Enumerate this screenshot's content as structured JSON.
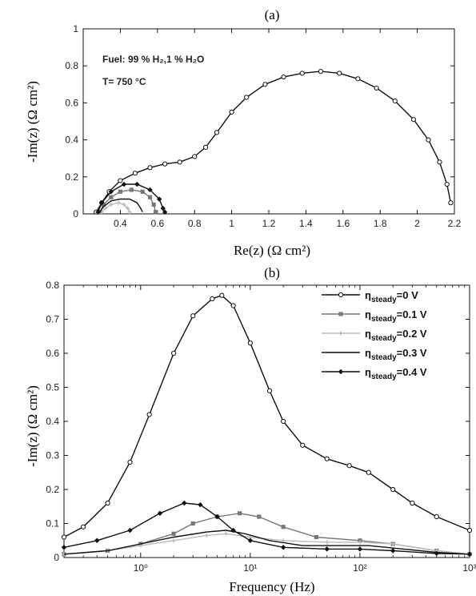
{
  "chart_data": [
    {
      "type": "line",
      "panel_label": "(a)",
      "xlabel": "Re(z) (Ω cm²)",
      "ylabel": "-Im(z) (Ω cm²)",
      "xlim": [
        0.2,
        2.2
      ],
      "ylim": [
        0,
        1
      ],
      "xticks": [
        "0.4",
        "0.6",
        "0.8",
        "1",
        "1.2",
        "1.4",
        "1.6",
        "1.8",
        "2",
        "2.2"
      ],
      "yticks": [
        "0",
        "0.2",
        "0.4",
        "0.6",
        "0.8",
        "1"
      ],
      "annotations": [
        "Fuel: 99 % H₂,1 % H₂O",
        "T= 750 °C"
      ],
      "series": [
        {
          "color": "#111111",
          "marker": "circle-open",
          "points": [
            [
              0.27,
              0.01
            ],
            [
              0.3,
              0.06
            ],
            [
              0.34,
              0.12
            ],
            [
              0.4,
              0.18
            ],
            [
              0.48,
              0.22
            ],
            [
              0.56,
              0.25
            ],
            [
              0.64,
              0.27
            ],
            [
              0.72,
              0.28
            ],
            [
              0.8,
              0.31
            ],
            [
              0.86,
              0.36
            ],
            [
              0.92,
              0.44
            ],
            [
              1.0,
              0.55
            ],
            [
              1.08,
              0.63
            ],
            [
              1.18,
              0.7
            ],
            [
              1.28,
              0.74
            ],
            [
              1.38,
              0.76
            ],
            [
              1.48,
              0.77
            ],
            [
              1.58,
              0.76
            ],
            [
              1.68,
              0.73
            ],
            [
              1.78,
              0.68
            ],
            [
              1.88,
              0.61
            ],
            [
              1.98,
              0.51
            ],
            [
              2.06,
              0.4
            ],
            [
              2.12,
              0.28
            ],
            [
              2.16,
              0.16
            ],
            [
              2.18,
              0.06
            ]
          ]
        },
        {
          "color": "#777777",
          "marker": "square",
          "points": [
            [
              0.29,
              0.01
            ],
            [
              0.31,
              0.05
            ],
            [
              0.35,
              0.09
            ],
            [
              0.4,
              0.12
            ],
            [
              0.46,
              0.13
            ],
            [
              0.52,
              0.12
            ],
            [
              0.56,
              0.09
            ],
            [
              0.58,
              0.05
            ],
            [
              0.59,
              0.01
            ]
          ]
        },
        {
          "color": "#bbbbbb",
          "marker": "cross",
          "points": [
            [
              0.3,
              0.01
            ],
            [
              0.32,
              0.03
            ],
            [
              0.35,
              0.05
            ],
            [
              0.39,
              0.06
            ],
            [
              0.42,
              0.05
            ],
            [
              0.44,
              0.03
            ],
            [
              0.45,
              0.01
            ]
          ]
        },
        {
          "color": "#111111",
          "marker": "none",
          "points": [
            [
              0.29,
              0.01
            ],
            [
              0.31,
              0.04
            ],
            [
              0.35,
              0.07
            ],
            [
              0.4,
              0.08
            ],
            [
              0.45,
              0.08
            ],
            [
              0.49,
              0.06
            ],
            [
              0.51,
              0.03
            ],
            [
              0.52,
              0.01
            ]
          ]
        },
        {
          "color": "#111111",
          "marker": "diamond",
          "points": [
            [
              0.28,
              0.01
            ],
            [
              0.3,
              0.06
            ],
            [
              0.35,
              0.12
            ],
            [
              0.42,
              0.16
            ],
            [
              0.49,
              0.16
            ],
            [
              0.56,
              0.13
            ],
            [
              0.61,
              0.08
            ],
            [
              0.63,
              0.03
            ],
            [
              0.64,
              0.01
            ]
          ]
        }
      ]
    },
    {
      "type": "line",
      "panel_label": "(b)",
      "xlabel": "Frequency (Hz)",
      "ylabel": "-Im(z) (Ω cm²)",
      "xscale": "log",
      "xlim": [
        0.2,
        1000
      ],
      "ylim": [
        0,
        0.8
      ],
      "xticks": [
        "10⁰",
        "10¹",
        "10²",
        "10³"
      ],
      "yticks": [
        "0",
        "0.1",
        "0.2",
        "0.3",
        "0.4",
        "0.5",
        "0.6",
        "0.7",
        "0.8"
      ],
      "legend_position": "top-right",
      "series": [
        {
          "name": "η_steady=0 V",
          "legend_main": "η",
          "legend_sub": "steady",
          "legend_rest": "=0 V",
          "color": "#111111",
          "marker": "circle-open",
          "points": [
            [
              0.2,
              0.06
            ],
            [
              0.3,
              0.09
            ],
            [
              0.5,
              0.16
            ],
            [
              0.8,
              0.28
            ],
            [
              1.2,
              0.42
            ],
            [
              2,
              0.6
            ],
            [
              3,
              0.71
            ],
            [
              4.5,
              0.76
            ],
            [
              5.5,
              0.77
            ],
            [
              7,
              0.74
            ],
            [
              10,
              0.63
            ],
            [
              15,
              0.49
            ],
            [
              20,
              0.4
            ],
            [
              30,
              0.33
            ],
            [
              50,
              0.29
            ],
            [
              80,
              0.27
            ],
            [
              120,
              0.25
            ],
            [
              200,
              0.2
            ],
            [
              300,
              0.16
            ],
            [
              500,
              0.12
            ],
            [
              1000,
              0.08
            ]
          ]
        },
        {
          "name": "η_steady=0.1 V",
          "legend_main": "η",
          "legend_sub": "steady",
          "legend_rest": "=0.1 V",
          "color": "#777777",
          "marker": "square",
          "points": [
            [
              0.2,
              0.01
            ],
            [
              0.5,
              0.02
            ],
            [
              1,
              0.04
            ],
            [
              2,
              0.07
            ],
            [
              3,
              0.1
            ],
            [
              5,
              0.12
            ],
            [
              8,
              0.13
            ],
            [
              12,
              0.12
            ],
            [
              20,
              0.09
            ],
            [
              40,
              0.06
            ],
            [
              100,
              0.05
            ],
            [
              200,
              0.04
            ],
            [
              500,
              0.02
            ],
            [
              1000,
              0.01
            ]
          ]
        },
        {
          "name": "η_steady=0.2 V",
          "legend_main": "η",
          "legend_sub": "steady",
          "legend_rest": "=0.2 V",
          "color": "#bbbbbb",
          "marker": "cross",
          "points": [
            [
              0.2,
              0.01
            ],
            [
              0.5,
              0.02
            ],
            [
              1,
              0.035
            ],
            [
              2,
              0.05
            ],
            [
              4,
              0.065
            ],
            [
              6,
              0.07
            ],
            [
              10,
              0.06
            ],
            [
              20,
              0.05
            ],
            [
              50,
              0.045
            ],
            [
              100,
              0.045
            ],
            [
              200,
              0.04
            ],
            [
              500,
              0.02
            ],
            [
              1000,
              0.01
            ]
          ]
        },
        {
          "name": "η_steady=0.3 V",
          "legend_main": "η",
          "legend_sub": "steady",
          "legend_rest": "=0.3 V",
          "color": "#111111",
          "marker": "none",
          "points": [
            [
              0.2,
              0.01
            ],
            [
              0.5,
              0.02
            ],
            [
              1,
              0.04
            ],
            [
              2,
              0.06
            ],
            [
              4,
              0.075
            ],
            [
              6,
              0.08
            ],
            [
              9,
              0.07
            ],
            [
              15,
              0.05
            ],
            [
              30,
              0.035
            ],
            [
              70,
              0.035
            ],
            [
              120,
              0.035
            ],
            [
              250,
              0.025
            ],
            [
              500,
              0.015
            ],
            [
              1000,
              0.01
            ]
          ]
        },
        {
          "name": "η_steady=0.4 V",
          "legend_main": "η",
          "legend_sub": "steady",
          "legend_rest": "=0.4 V",
          "color": "#111111",
          "marker": "diamond",
          "points": [
            [
              0.2,
              0.03
            ],
            [
              0.4,
              0.05
            ],
            [
              0.8,
              0.08
            ],
            [
              1.5,
              0.13
            ],
            [
              2.5,
              0.16
            ],
            [
              3.5,
              0.155
            ],
            [
              5,
              0.12
            ],
            [
              7,
              0.08
            ],
            [
              10,
              0.05
            ],
            [
              20,
              0.03
            ],
            [
              50,
              0.025
            ],
            [
              100,
              0.025
            ],
            [
              200,
              0.02
            ],
            [
              500,
              0.012
            ],
            [
              1000,
              0.01
            ]
          ]
        }
      ]
    }
  ]
}
